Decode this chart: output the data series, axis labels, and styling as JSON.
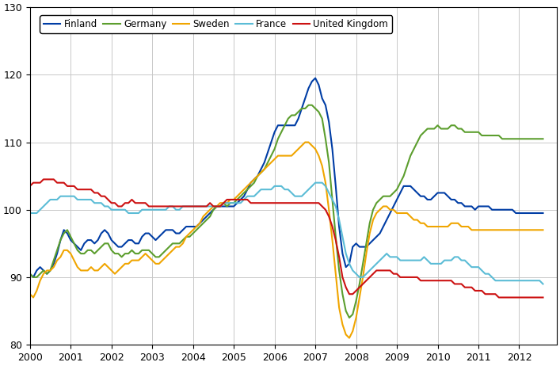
{
  "title": "",
  "xlim": [
    2000,
    2012.92
  ],
  "ylim": [
    80,
    130
  ],
  "yticks": [
    80,
    90,
    100,
    110,
    120,
    130
  ],
  "xticks": [
    2000,
    2001,
    2002,
    2003,
    2004,
    2005,
    2006,
    2007,
    2008,
    2009,
    2010,
    2011,
    2012
  ],
  "colors": {
    "Finland": "#003da5",
    "Germany": "#5c9e2e",
    "Sweden": "#f0a500",
    "France": "#5bbcd6",
    "United Kingdom": "#cc1111"
  },
  "Finland": [
    90.5,
    90.0,
    91.0,
    91.5,
    91.0,
    90.5,
    91.0,
    92.0,
    93.5,
    95.5,
    97.0,
    96.5,
    95.5,
    95.0,
    94.5,
    94.0,
    95.0,
    95.5,
    95.5,
    95.0,
    95.5,
    96.5,
    97.0,
    96.5,
    95.5,
    95.0,
    94.5,
    94.5,
    95.0,
    95.5,
    95.5,
    95.0,
    95.0,
    96.0,
    96.5,
    96.5,
    96.0,
    95.5,
    96.0,
    96.5,
    97.0,
    97.0,
    97.0,
    96.5,
    96.5,
    97.0,
    97.5,
    97.5,
    97.5,
    97.5,
    98.0,
    98.5,
    99.0,
    99.5,
    100.0,
    100.5,
    100.5,
    100.5,
    100.5,
    100.5,
    100.5,
    101.0,
    101.5,
    102.0,
    103.0,
    104.0,
    104.5,
    105.0,
    106.0,
    107.0,
    108.5,
    110.0,
    111.5,
    112.5,
    112.5,
    112.5,
    112.5,
    112.5,
    112.5,
    113.5,
    115.0,
    116.5,
    118.0,
    119.0,
    119.5,
    118.5,
    116.5,
    115.5,
    113.0,
    109.0,
    103.5,
    97.5,
    93.5,
    91.5,
    92.0,
    94.5,
    95.0,
    94.5,
    94.5,
    94.5,
    95.0,
    95.5,
    96.0,
    96.5,
    97.5,
    98.5,
    99.5,
    100.5,
    101.5,
    102.5,
    103.5,
    103.5,
    103.5,
    103.0,
    102.5,
    102.0,
    102.0,
    101.5,
    101.5,
    102.0,
    102.5,
    102.5,
    102.5,
    102.0,
    101.5,
    101.5,
    101.0,
    101.0,
    100.5,
    100.5,
    100.5,
    100.0,
    100.5,
    100.5,
    100.5,
    100.5,
    100.0,
    100.0,
    100.0,
    100.0,
    100.0,
    100.0,
    100.0,
    99.5,
    99.5,
    99.5,
    99.5,
    99.5,
    99.5,
    99.5,
    99.5,
    99.5
  ],
  "Germany": [
    90.5,
    90.0,
    90.0,
    90.5,
    91.0,
    90.5,
    91.0,
    92.5,
    94.0,
    95.5,
    96.5,
    97.0,
    96.0,
    95.0,
    94.0,
    93.5,
    93.5,
    94.0,
    94.0,
    93.5,
    94.0,
    94.5,
    95.0,
    95.0,
    94.0,
    93.5,
    93.5,
    93.0,
    93.5,
    93.5,
    94.0,
    93.5,
    93.5,
    94.0,
    94.0,
    94.0,
    93.5,
    93.0,
    93.0,
    93.5,
    94.0,
    94.5,
    95.0,
    95.0,
    95.0,
    95.5,
    96.0,
    96.0,
    96.5,
    97.0,
    97.5,
    98.0,
    98.5,
    99.0,
    100.0,
    100.5,
    100.5,
    101.0,
    100.5,
    101.0,
    101.0,
    101.5,
    102.0,
    102.5,
    103.0,
    103.5,
    104.0,
    105.0,
    105.5,
    106.0,
    107.0,
    108.0,
    109.0,
    110.5,
    111.5,
    112.5,
    113.5,
    114.0,
    114.0,
    114.5,
    115.0,
    115.0,
    115.5,
    115.5,
    115.0,
    114.5,
    113.5,
    110.5,
    107.0,
    101.5,
    96.0,
    91.0,
    87.5,
    85.0,
    84.0,
    84.5,
    86.5,
    89.0,
    92.0,
    95.0,
    98.0,
    100.0,
    101.0,
    101.5,
    102.0,
    102.0,
    102.0,
    102.5,
    103.0,
    104.0,
    105.0,
    106.5,
    108.0,
    109.0,
    110.0,
    111.0,
    111.5,
    112.0,
    112.0,
    112.0,
    112.5,
    112.0,
    112.0,
    112.0,
    112.5,
    112.5,
    112.0,
    112.0,
    111.5,
    111.5,
    111.5,
    111.5,
    111.5,
    111.0,
    111.0,
    111.0,
    111.0,
    111.0,
    111.0,
    110.5,
    110.5,
    110.5,
    110.5,
    110.5,
    110.5,
    110.5,
    110.5,
    110.5,
    110.5,
    110.5,
    110.5,
    110.5
  ],
  "Sweden": [
    87.5,
    87.0,
    88.0,
    89.5,
    90.5,
    91.0,
    91.0,
    91.5,
    92.5,
    93.0,
    94.0,
    94.0,
    93.5,
    92.5,
    91.5,
    91.0,
    91.0,
    91.0,
    91.5,
    91.0,
    91.0,
    91.5,
    92.0,
    91.5,
    91.0,
    90.5,
    91.0,
    91.5,
    92.0,
    92.0,
    92.5,
    92.5,
    92.5,
    93.0,
    93.5,
    93.0,
    92.5,
    92.0,
    92.0,
    92.5,
    93.0,
    93.5,
    94.0,
    94.5,
    94.5,
    95.0,
    96.0,
    96.5,
    97.0,
    97.5,
    98.0,
    99.0,
    99.5,
    100.0,
    100.5,
    100.5,
    101.0,
    101.0,
    101.0,
    101.5,
    101.5,
    102.0,
    102.5,
    103.0,
    103.5,
    104.0,
    104.5,
    105.0,
    105.5,
    106.0,
    106.5,
    107.0,
    107.5,
    108.0,
    108.0,
    108.0,
    108.0,
    108.0,
    108.5,
    109.0,
    109.5,
    110.0,
    110.0,
    109.5,
    109.0,
    108.0,
    106.5,
    104.0,
    100.0,
    95.5,
    90.5,
    85.5,
    83.0,
    81.5,
    81.0,
    82.0,
    84.0,
    87.0,
    90.0,
    93.5,
    96.5,
    98.5,
    99.5,
    100.0,
    100.5,
    100.5,
    100.0,
    100.0,
    99.5,
    99.5,
    99.5,
    99.5,
    99.0,
    98.5,
    98.5,
    98.0,
    98.0,
    97.5,
    97.5,
    97.5,
    97.5,
    97.5,
    97.5,
    97.5,
    98.0,
    98.0,
    98.0,
    97.5,
    97.5,
    97.5,
    97.0,
    97.0,
    97.0,
    97.0,
    97.0,
    97.0,
    97.0,
    97.0,
    97.0,
    97.0,
    97.0,
    97.0,
    97.0,
    97.0,
    97.0,
    97.0,
    97.0,
    97.0,
    97.0,
    97.0,
    97.0,
    97.0
  ],
  "France": [
    99.5,
    99.5,
    99.5,
    100.0,
    100.5,
    101.0,
    101.5,
    101.5,
    101.5,
    102.0,
    102.0,
    102.0,
    102.0,
    102.0,
    101.5,
    101.5,
    101.5,
    101.5,
    101.5,
    101.0,
    101.0,
    101.0,
    100.5,
    100.5,
    100.0,
    100.0,
    100.0,
    100.0,
    100.0,
    99.5,
    99.5,
    99.5,
    99.5,
    100.0,
    100.0,
    100.0,
    100.0,
    100.0,
    100.0,
    100.0,
    100.0,
    100.5,
    100.5,
    100.0,
    100.0,
    100.5,
    100.5,
    100.5,
    100.5,
    100.5,
    100.5,
    100.5,
    100.5,
    100.5,
    100.5,
    100.5,
    100.5,
    101.0,
    101.0,
    101.0,
    101.0,
    101.0,
    101.0,
    101.5,
    102.0,
    102.0,
    102.0,
    102.5,
    103.0,
    103.0,
    103.0,
    103.0,
    103.5,
    103.5,
    103.5,
    103.0,
    103.0,
    102.5,
    102.0,
    102.0,
    102.0,
    102.5,
    103.0,
    103.5,
    104.0,
    104.0,
    104.0,
    103.5,
    102.5,
    101.5,
    100.5,
    98.5,
    96.0,
    93.5,
    92.0,
    91.0,
    90.5,
    90.0,
    90.0,
    90.5,
    91.0,
    91.5,
    92.0,
    92.5,
    93.0,
    93.5,
    93.0,
    93.0,
    93.0,
    92.5,
    92.5,
    92.5,
    92.5,
    92.5,
    92.5,
    92.5,
    93.0,
    92.5,
    92.0,
    92.0,
    92.0,
    92.0,
    92.5,
    92.5,
    92.5,
    93.0,
    93.0,
    92.5,
    92.5,
    92.0,
    91.5,
    91.5,
    91.5,
    91.0,
    90.5,
    90.5,
    90.0,
    89.5,
    89.5,
    89.5,
    89.5,
    89.5,
    89.5,
    89.5,
    89.5,
    89.5,
    89.5,
    89.5,
    89.5,
    89.5,
    89.5,
    89.0
  ],
  "United Kingdom": [
    103.5,
    104.0,
    104.0,
    104.0,
    104.5,
    104.5,
    104.5,
    104.5,
    104.0,
    104.0,
    104.0,
    103.5,
    103.5,
    103.5,
    103.0,
    103.0,
    103.0,
    103.0,
    103.0,
    102.5,
    102.5,
    102.0,
    102.0,
    101.5,
    101.0,
    101.0,
    100.5,
    100.5,
    101.0,
    101.0,
    101.5,
    101.0,
    101.0,
    101.0,
    101.0,
    100.5,
    100.5,
    100.5,
    100.5,
    100.5,
    100.5,
    100.5,
    100.5,
    100.5,
    100.5,
    100.5,
    100.5,
    100.5,
    100.5,
    100.5,
    100.5,
    100.5,
    100.5,
    101.0,
    100.5,
    100.5,
    100.5,
    101.0,
    101.5,
    101.5,
    101.5,
    101.5,
    101.5,
    101.5,
    101.5,
    101.0,
    101.0,
    101.0,
    101.0,
    101.0,
    101.0,
    101.0,
    101.0,
    101.0,
    101.0,
    101.0,
    101.0,
    101.0,
    101.0,
    101.0,
    101.0,
    101.0,
    101.0,
    101.0,
    101.0,
    101.0,
    100.5,
    100.0,
    99.0,
    97.5,
    95.5,
    93.0,
    90.0,
    88.5,
    87.5,
    87.5,
    88.0,
    88.5,
    89.0,
    89.5,
    90.0,
    90.5,
    91.0,
    91.0,
    91.0,
    91.0,
    91.0,
    90.5,
    90.5,
    90.0,
    90.0,
    90.0,
    90.0,
    90.0,
    90.0,
    89.5,
    89.5,
    89.5,
    89.5,
    89.5,
    89.5,
    89.5,
    89.5,
    89.5,
    89.5,
    89.0,
    89.0,
    89.0,
    88.5,
    88.5,
    88.5,
    88.0,
    88.0,
    88.0,
    87.5,
    87.5,
    87.5,
    87.5,
    87.0,
    87.0,
    87.0,
    87.0,
    87.0,
    87.0,
    87.0,
    87.0,
    87.0,
    87.0,
    87.0,
    87.0,
    87.0,
    87.0
  ]
}
